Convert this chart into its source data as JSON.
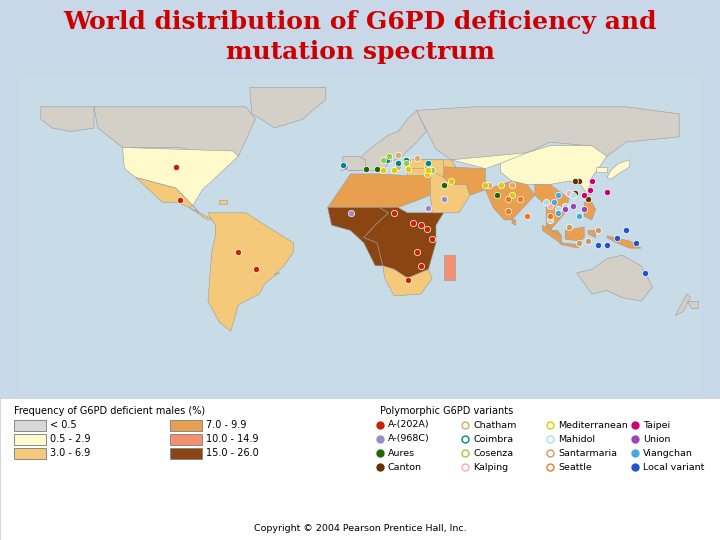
{
  "title_line1": "World distribution of G6PD deficiency and",
  "title_line2": "mutation spectrum",
  "title_color": "#cc0000",
  "title_fontsize": 18,
  "background_color": "#c8d8e8",
  "freq_title": "Frequency of G6PD deficient males (%)",
  "poly_title": "Polymorphic G6PD variants",
  "freq_boxes": [
    {
      "label": "< 0.5",
      "facecolor": "#d8d8d8",
      "edgecolor": "#888888"
    },
    {
      "label": "0.5 - 2.9",
      "facecolor": "#fffacc",
      "edgecolor": "#888888"
    },
    {
      "label": "3.0 - 6.9",
      "facecolor": "#f5c97a",
      "edgecolor": "#888888"
    },
    {
      "label": "7.0 - 9.9",
      "facecolor": "#e8a050",
      "edgecolor": "#888888"
    },
    {
      "label": "10.0 - 14.9",
      "facecolor": "#f49070",
      "edgecolor": "#888888"
    },
    {
      "label": "15.0 - 26.0",
      "facecolor": "#8b4513",
      "edgecolor": "#888888"
    }
  ],
  "variants": [
    {
      "label": "A-(202A)",
      "color": "#cc2200",
      "filled": true
    },
    {
      "label": "A-(968C)",
      "color": "#9988cc",
      "filled": true
    },
    {
      "label": "Aures",
      "color": "#226600",
      "filled": true
    },
    {
      "label": "Canton",
      "color": "#663300",
      "filled": true
    },
    {
      "label": "Chatham",
      "color": "#ddaa66",
      "filled": false
    },
    {
      "label": "Coimbra",
      "color": "#008888",
      "filled": false
    },
    {
      "label": "Cosenza",
      "color": "#99cc44",
      "filled": false
    },
    {
      "label": "Kalping",
      "color": "#ffaaaa",
      "filled": false
    },
    {
      "label": "Mediterranean",
      "color": "#ddcc00",
      "filled": false
    },
    {
      "label": "Mahidol",
      "color": "#aaddee",
      "filled": false
    },
    {
      "label": "Santarmaria",
      "color": "#cc9966",
      "filled": false
    },
    {
      "label": "Seattle",
      "color": "#ee7722",
      "filled": false
    },
    {
      "label": "Taipei",
      "color": "#cc0077",
      "filled": true
    },
    {
      "label": "Union",
      "color": "#9944bb",
      "filled": true
    },
    {
      "label": "Viangchan",
      "color": "#44aadd",
      "filled": true
    },
    {
      "label": "Local variant",
      "color": "#2255cc",
      "filled": true
    }
  ],
  "copyright": "Copyright © 2004 Pearson Prentice Hall, Inc.",
  "map_colors": {
    "c0": "#d4d0c8",
    "c1": "#fffacc",
    "c2": "#f5c97a",
    "c3": "#e8a050",
    "c4": "#f49070",
    "c5": "#8b4513"
  }
}
